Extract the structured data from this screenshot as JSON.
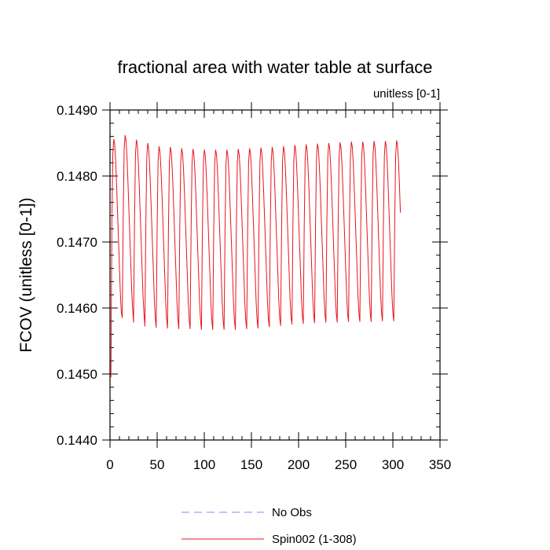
{
  "chart_data": {
    "type": "line",
    "title": "fractional area with water table at surface",
    "subtitle": "unitless [0-1]",
    "xlabel": "",
    "ylabel": "FCOV  (unitless [0-1])",
    "xlim": [
      0,
      350
    ],
    "ylim": [
      0.144,
      0.149
    ],
    "x_ticks": [
      0,
      50,
      100,
      150,
      200,
      250,
      300,
      350
    ],
    "x_tick_labels": [
      "0",
      "50",
      "100",
      "150",
      "200",
      "250",
      "300",
      "350"
    ],
    "y_ticks": [
      0.144,
      0.145,
      0.146,
      0.147,
      0.148,
      0.149
    ],
    "y_tick_labels": [
      "0.1440",
      "0.1450",
      "0.1460",
      "0.1470",
      "0.1480",
      "0.1490"
    ],
    "grid": false,
    "legend_position": "bottom",
    "series": [
      {
        "name": "No Obs",
        "color": "#8a8aff",
        "dash": "dashed",
        "values": []
      },
      {
        "name": "Spin002 (1-308)",
        "color": "#e8141c",
        "dash": "solid",
        "x_range": [
          1,
          308
        ],
        "seasonal_cycle_months": 12,
        "start_value": 0.14495,
        "annual_max": [
          0.14856,
          0.14862,
          0.14855,
          0.1485,
          0.14845,
          0.14844,
          0.14842,
          0.14841,
          0.1484,
          0.1484,
          0.1484,
          0.14841,
          0.14842,
          0.14843,
          0.14844,
          0.14845,
          0.14847,
          0.14848,
          0.14849,
          0.1485,
          0.14851,
          0.14852,
          0.14852,
          0.14853,
          0.14853,
          0.14854
        ],
        "annual_min": [
          0.1458,
          0.14585,
          0.14578,
          0.14572,
          0.1457,
          0.14569,
          0.14568,
          0.14568,
          0.14567,
          0.14567,
          0.14567,
          0.14567,
          0.14568,
          0.14569,
          0.14571,
          0.14573,
          0.14575,
          0.14576,
          0.14577,
          0.14578,
          0.14578,
          0.14579,
          0.14579,
          0.14579,
          0.1458,
          0.1458
        ]
      }
    ]
  }
}
